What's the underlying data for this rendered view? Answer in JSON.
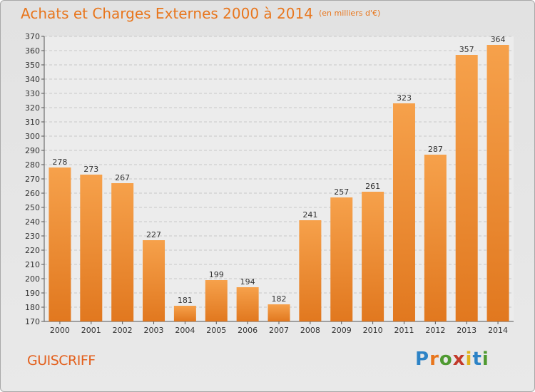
{
  "header": {
    "title": "Achats et Charges Externes 2000 à 2014",
    "unit": "(en milliers d'€)"
  },
  "footer": {
    "city": "GUISCRIFF",
    "logo": "Proxiti"
  },
  "colors": {
    "bar_light": "#f6a14b",
    "bar_dark": "#e1781f",
    "accent": "#e8761d"
  },
  "chart_data": {
    "type": "bar",
    "categories": [
      "2000",
      "2001",
      "2002",
      "2003",
      "2004",
      "2005",
      "2006",
      "2007",
      "2008",
      "2009",
      "2010",
      "2011",
      "2012",
      "2013",
      "2014"
    ],
    "values": [
      278,
      273,
      267,
      227,
      181,
      199,
      194,
      182,
      241,
      257,
      261,
      323,
      287,
      357,
      364
    ],
    "title": "Achats et Charges Externes 2000 à 2014",
    "unit": "(en milliers d'€)",
    "ylim": [
      170,
      370
    ],
    "yticks": [
      170,
      180,
      190,
      200,
      210,
      220,
      230,
      240,
      250,
      260,
      270,
      280,
      290,
      300,
      310,
      320,
      330,
      340,
      350,
      360,
      370
    ],
    "grid": true
  }
}
